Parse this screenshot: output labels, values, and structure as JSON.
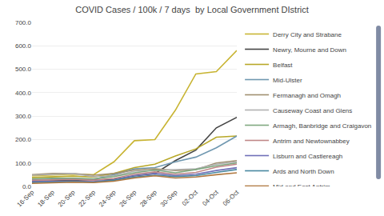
{
  "chart_data": {
    "type": "line",
    "title": "COVID Cases / 100k / 7 days  by Local Government DIstrict",
    "categories": [
      "16-Sep",
      "18-Sep",
      "20-Sep",
      "22-Sep",
      "24-Sep",
      "26-Sep",
      "28-Sep",
      "30-Sep",
      "02-Oct",
      "04-Oct",
      "06-Oct"
    ],
    "series": [
      {
        "name": "Derry City and Strabane",
        "color": "#c8b432",
        "values": [
          45,
          48,
          52,
          50,
          105,
          195,
          200,
          325,
          480,
          490,
          580
        ]
      },
      {
        "name": "Newry, Mourne and Down",
        "color": "#444444",
        "values": [
          22,
          24,
          26,
          26,
          30,
          45,
          55,
          110,
          155,
          250,
          295
        ]
      },
      {
        "name": "Belfast",
        "color": "#b8a828",
        "values": [
          38,
          42,
          44,
          40,
          55,
          80,
          95,
          130,
          160,
          210,
          215
        ]
      },
      {
        "name": "Mid-Ulster",
        "color": "#7098b0",
        "values": [
          30,
          32,
          34,
          30,
          50,
          75,
          80,
          105,
          125,
          165,
          215
        ]
      },
      {
        "name": "Fermanagh and Omagh",
        "color": "#a09070",
        "values": [
          50,
          55,
          55,
          48,
          55,
          70,
          75,
          68,
          72,
          100,
          110
        ]
      },
      {
        "name": "Causeway Coast and Glens",
        "color": "#b0b0b0",
        "values": [
          48,
          52,
          55,
          42,
          45,
          65,
          68,
          70,
          75,
          95,
          105
        ]
      },
      {
        "name": "Armagh, Banbridge and Craigavon",
        "color": "#80a880",
        "values": [
          32,
          35,
          35,
          32,
          42,
          58,
          70,
          58,
          72,
          88,
          100
        ]
      },
      {
        "name": "Antrim and Newtownabbey",
        "color": "#c08888",
        "values": [
          26,
          28,
          30,
          26,
          34,
          52,
          62,
          52,
          60,
          82,
          95
        ]
      },
      {
        "name": "Lisburn and Castlereagh",
        "color": "#7070b8",
        "values": [
          20,
          22,
          22,
          20,
          28,
          46,
          55,
          46,
          52,
          68,
          80
        ]
      },
      {
        "name": "Ards and North Down",
        "color": "#4888a0",
        "values": [
          16,
          18,
          20,
          18,
          26,
          40,
          48,
          42,
          46,
          60,
          72
        ]
      },
      {
        "name": "Mid and East Antrim",
        "color": "#b07840",
        "values": [
          13,
          15,
          18,
          16,
          22,
          36,
          45,
          36,
          40,
          50,
          58
        ]
      }
    ],
    "ylim": [
      0,
      700
    ],
    "yticks": [
      {
        "value": 0,
        "label": "0.0"
      },
      {
        "value": 100,
        "label": "100.0"
      },
      {
        "value": 200,
        "label": "200.0"
      },
      {
        "value": 300,
        "label": "300.0"
      },
      {
        "value": 400,
        "label": "400.0"
      },
      {
        "value": 500,
        "label": "500.0"
      },
      {
        "value": 600,
        "label": "600.0"
      },
      {
        "value": 700,
        "label": "700.0"
      }
    ],
    "grid": true,
    "legend": "right"
  }
}
